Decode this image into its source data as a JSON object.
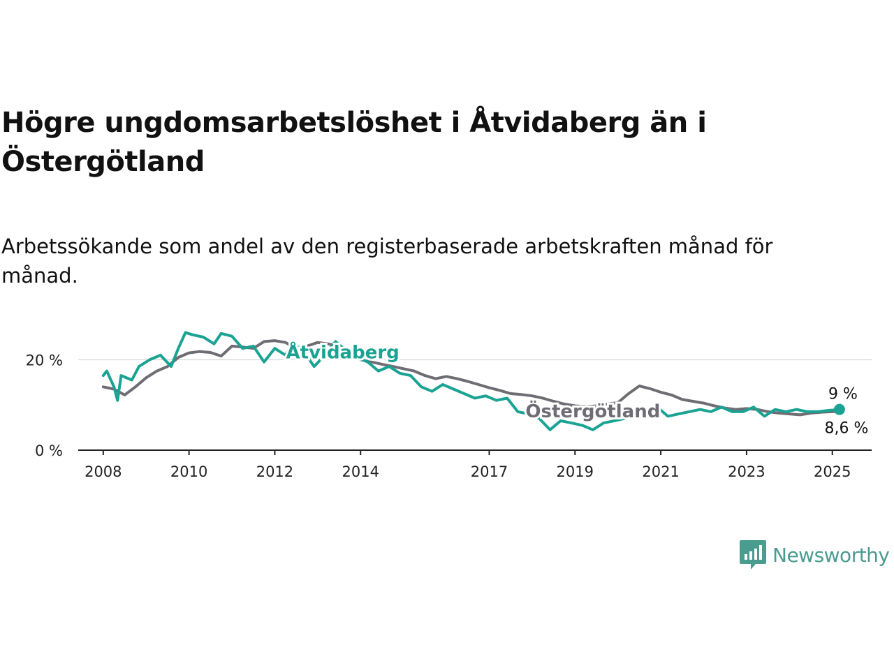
{
  "title": "Högre ungdomsarbetslöshet i Åtvidaberg än i Östergötland",
  "subtitle": "Arbetssökande som andel av den registerbaserade arbetskraften månad för månad.",
  "brand": {
    "name": "Newsworthy",
    "icon": "newsworthy-logo-icon",
    "color": "#4a9c8f"
  },
  "chart_data": {
    "type": "line",
    "x_ticks": [
      "2008",
      "2010",
      "2012",
      "2014",
      "2017",
      "2019",
      "2021",
      "2023",
      "2025"
    ],
    "y_ticks": [
      "0 %",
      "20 %"
    ],
    "ylim": [
      0,
      27
    ],
    "xlim": [
      "2007-06",
      "2025-12"
    ],
    "grid": true,
    "series": [
      {
        "name": "Östergötland",
        "color": "#6f6d74",
        "end_label": "8,6 %",
        "points": [
          [
            "2008-01",
            14.0
          ],
          [
            "2008-04",
            13.5
          ],
          [
            "2008-07",
            12.2
          ],
          [
            "2008-10",
            14.0
          ],
          [
            "2009-01",
            16.0
          ],
          [
            "2009-04",
            17.5
          ],
          [
            "2009-07",
            18.5
          ],
          [
            "2009-10",
            20.5
          ],
          [
            "2010-01",
            21.5
          ],
          [
            "2010-04",
            21.8
          ],
          [
            "2010-07",
            21.6
          ],
          [
            "2010-10",
            20.8
          ],
          [
            "2011-01",
            23.0
          ],
          [
            "2011-04",
            22.8
          ],
          [
            "2011-07",
            22.5
          ],
          [
            "2011-10",
            24.0
          ],
          [
            "2012-01",
            24.2
          ],
          [
            "2012-04",
            23.8
          ],
          [
            "2012-07",
            22.5
          ],
          [
            "2012-10",
            23.0
          ],
          [
            "2013-01",
            23.8
          ],
          [
            "2013-04",
            23.5
          ],
          [
            "2013-07",
            22.8
          ],
          [
            "2013-10",
            21.5
          ],
          [
            "2014-01",
            20.0
          ],
          [
            "2014-04",
            19.5
          ],
          [
            "2014-07",
            19.0
          ],
          [
            "2014-10",
            18.5
          ],
          [
            "2015-01",
            18.0
          ],
          [
            "2015-04",
            17.5
          ],
          [
            "2015-07",
            16.5
          ],
          [
            "2015-10",
            15.8
          ],
          [
            "2016-01",
            16.3
          ],
          [
            "2016-04",
            15.8
          ],
          [
            "2016-07",
            15.2
          ],
          [
            "2016-10",
            14.5
          ],
          [
            "2017-01",
            13.8
          ],
          [
            "2017-04",
            13.2
          ],
          [
            "2017-07",
            12.5
          ],
          [
            "2017-10",
            12.3
          ],
          [
            "2018-01",
            12.0
          ],
          [
            "2018-04",
            11.5
          ],
          [
            "2018-07",
            10.8
          ],
          [
            "2018-10",
            10.2
          ],
          [
            "2019-01",
            9.8
          ],
          [
            "2019-04",
            9.6
          ],
          [
            "2019-07",
            9.8
          ],
          [
            "2019-10",
            10.2
          ],
          [
            "2020-01",
            10.5
          ],
          [
            "2020-04",
            12.5
          ],
          [
            "2020-07",
            14.2
          ],
          [
            "2020-10",
            13.6
          ],
          [
            "2021-01",
            12.8
          ],
          [
            "2021-04",
            12.2
          ],
          [
            "2021-07",
            11.2
          ],
          [
            "2021-10",
            10.8
          ],
          [
            "2022-01",
            10.4
          ],
          [
            "2022-04",
            9.8
          ],
          [
            "2022-07",
            9.3
          ],
          [
            "2022-10",
            9.0
          ],
          [
            "2023-01",
            9.2
          ],
          [
            "2023-04",
            9.0
          ],
          [
            "2023-07",
            8.5
          ],
          [
            "2023-10",
            8.2
          ],
          [
            "2024-01",
            8.0
          ],
          [
            "2024-04",
            7.8
          ],
          [
            "2024-07",
            8.2
          ],
          [
            "2024-10",
            8.4
          ],
          [
            "2025-01",
            8.5
          ],
          [
            "2025-03",
            8.6
          ]
        ]
      },
      {
        "name": "Åtvidaberg",
        "color": "#1aa393",
        "end_label": "9 %",
        "points": [
          [
            "2008-01",
            16.5
          ],
          [
            "2008-02",
            17.5
          ],
          [
            "2008-04",
            14.0
          ],
          [
            "2008-05",
            11.0
          ],
          [
            "2008-06",
            16.5
          ],
          [
            "2008-09",
            15.5
          ],
          [
            "2008-11",
            18.5
          ],
          [
            "2009-02",
            20.0
          ],
          [
            "2009-05",
            21.0
          ],
          [
            "2009-08",
            18.5
          ],
          [
            "2009-10",
            22.5
          ],
          [
            "2009-12",
            26.0
          ],
          [
            "2010-02",
            25.5
          ],
          [
            "2010-05",
            25.0
          ],
          [
            "2010-08",
            23.5
          ],
          [
            "2010-10",
            25.8
          ],
          [
            "2011-01",
            25.2
          ],
          [
            "2011-04",
            22.5
          ],
          [
            "2011-07",
            23.0
          ],
          [
            "2011-10",
            19.5
          ],
          [
            "2012-01",
            22.5
          ],
          [
            "2012-04",
            21.0
          ],
          [
            "2012-06",
            23.5
          ],
          [
            "2012-09",
            22.0
          ],
          [
            "2012-12",
            18.5
          ],
          [
            "2013-03",
            21.0
          ],
          [
            "2013-06",
            24.0
          ],
          [
            "2013-09",
            22.0
          ],
          [
            "2013-12",
            20.5
          ],
          [
            "2014-03",
            19.5
          ],
          [
            "2014-06",
            17.5
          ],
          [
            "2014-09",
            18.5
          ],
          [
            "2014-12",
            17.0
          ],
          [
            "2015-03",
            16.5
          ],
          [
            "2015-06",
            14.0
          ],
          [
            "2015-09",
            13.0
          ],
          [
            "2015-12",
            14.5
          ],
          [
            "2016-03",
            13.5
          ],
          [
            "2016-06",
            12.5
          ],
          [
            "2016-09",
            11.5
          ],
          [
            "2016-12",
            12.0
          ],
          [
            "2017-03",
            11.0
          ],
          [
            "2017-06",
            11.5
          ],
          [
            "2017-09",
            8.5
          ],
          [
            "2017-12",
            8.0
          ],
          [
            "2018-03",
            7.0
          ],
          [
            "2018-06",
            4.5
          ],
          [
            "2018-09",
            6.5
          ],
          [
            "2018-12",
            6.0
          ],
          [
            "2019-03",
            5.5
          ],
          [
            "2019-06",
            4.5
          ],
          [
            "2019-09",
            6.0
          ],
          [
            "2019-12",
            6.5
          ],
          [
            "2020-03",
            7.0
          ],
          [
            "2020-06",
            9.0
          ],
          [
            "2020-09",
            8.5
          ],
          [
            "2020-12",
            9.5
          ],
          [
            "2021-03",
            7.5
          ],
          [
            "2021-06",
            8.0
          ],
          [
            "2021-09",
            8.5
          ],
          [
            "2021-12",
            9.0
          ],
          [
            "2022-03",
            8.5
          ],
          [
            "2022-06",
            9.5
          ],
          [
            "2022-09",
            8.5
          ],
          [
            "2022-12",
            8.5
          ],
          [
            "2023-03",
            9.5
          ],
          [
            "2023-06",
            7.5
          ],
          [
            "2023-09",
            9.0
          ],
          [
            "2023-12",
            8.5
          ],
          [
            "2024-03",
            9.0
          ],
          [
            "2024-06",
            8.5
          ],
          [
            "2024-09",
            8.5
          ],
          [
            "2024-12",
            8.8
          ],
          [
            "2025-03",
            9.0
          ]
        ]
      }
    ]
  }
}
